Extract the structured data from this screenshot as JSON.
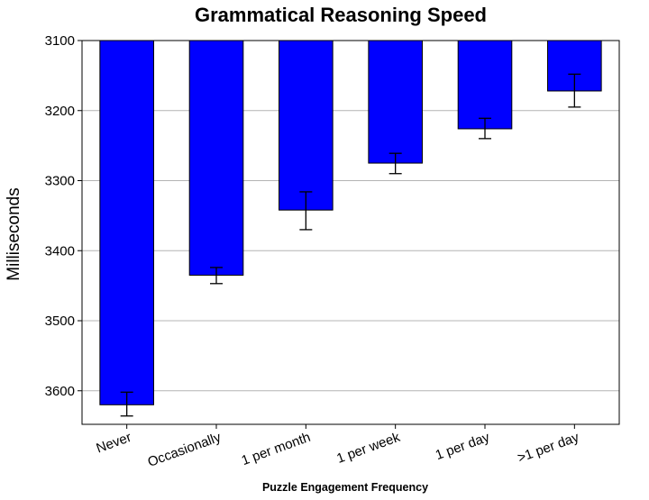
{
  "chart_data": {
    "type": "bar",
    "title": "Grammatical Reasoning Speed",
    "xlabel": "Puzzle Engagement Frequency",
    "ylabel": "Milliseconds",
    "categories": [
      "Never",
      "Occasionally",
      "1 per month",
      "1 per week",
      "1 per day",
      ">1 per day"
    ],
    "values": [
      3620,
      3435,
      3342,
      3275,
      3226,
      3172
    ],
    "error_low": [
      3636,
      3447,
      3370,
      3290,
      3240,
      3195
    ],
    "error_high": [
      3602,
      3424,
      3316,
      3261,
      3211,
      3148
    ],
    "ylim": [
      3100,
      3650
    ],
    "y_inverted": true,
    "yticks": [
      3100,
      3200,
      3300,
      3400,
      3500,
      3600
    ],
    "ytick_labels": [
      "3100",
      "3200",
      "3300",
      "3400",
      "3500",
      "3600"
    ],
    "grid": "horizontal",
    "bar_color": "#0000ff",
    "bar_edge_color": "#000000",
    "grid_color": "#b4b4b4"
  }
}
